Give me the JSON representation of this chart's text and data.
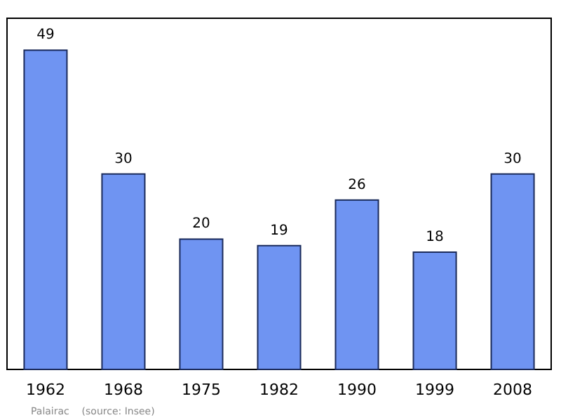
{
  "chart_data": {
    "type": "bar",
    "categories": [
      "1962",
      "1968",
      "1975",
      "1982",
      "1990",
      "1999",
      "2008"
    ],
    "values": [
      49,
      30,
      20,
      19,
      26,
      18,
      30
    ],
    "color": "#6f94f2",
    "data_labels": true,
    "annotations": [
      "Palairac    (source: Insee)"
    ]
  }
}
